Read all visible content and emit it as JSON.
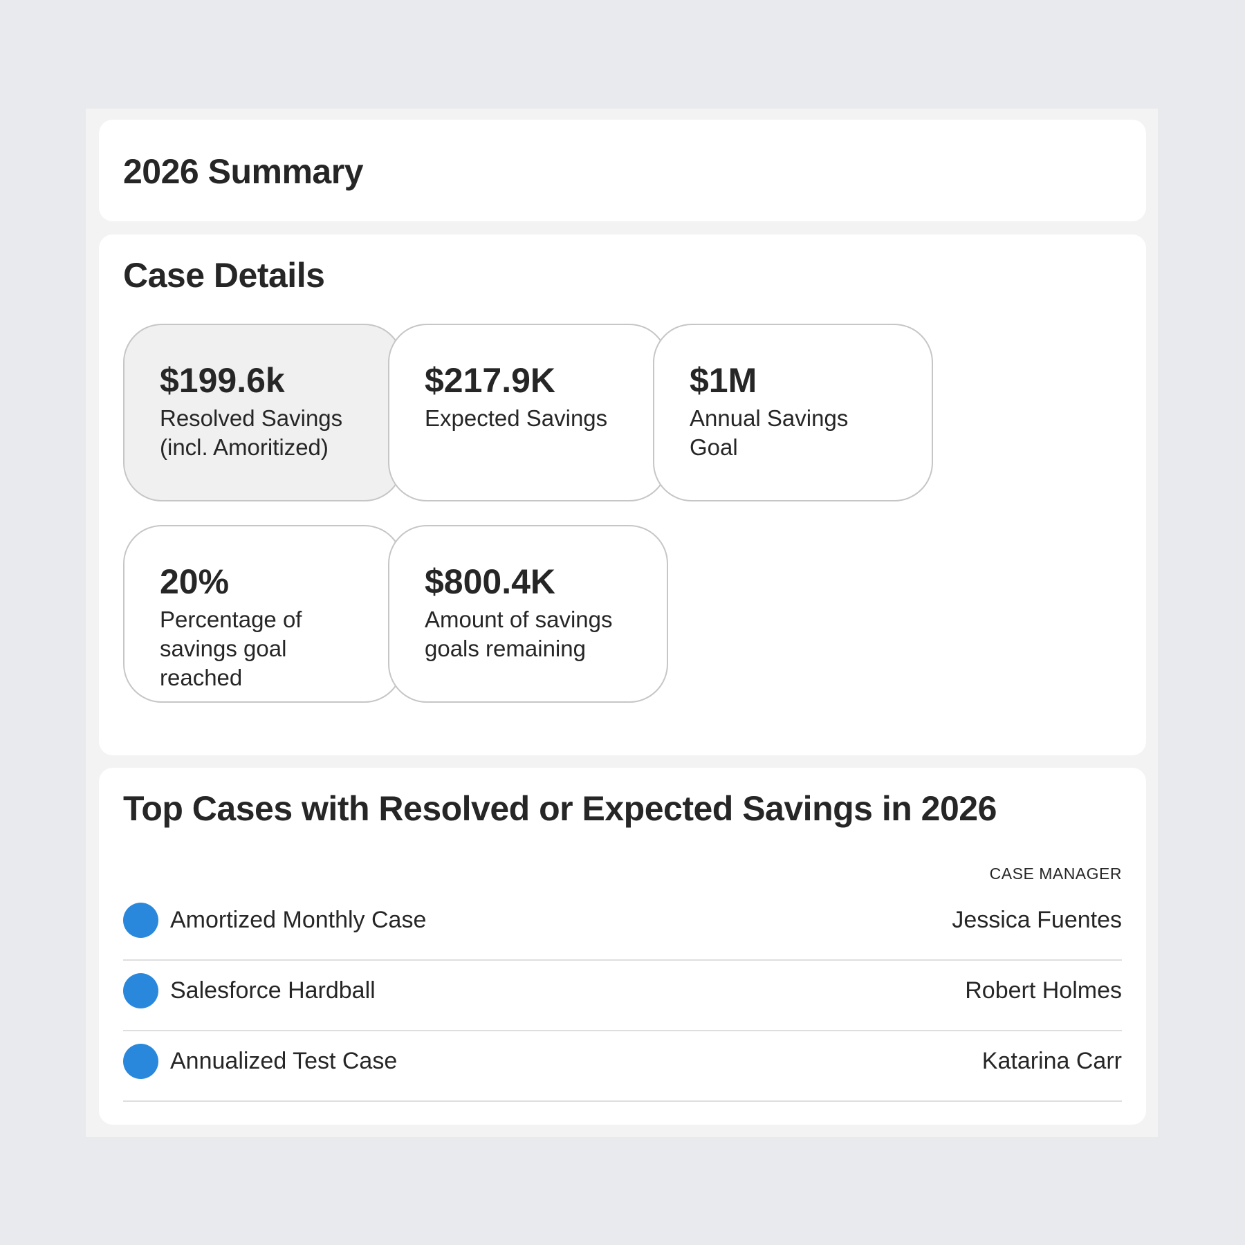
{
  "header": {
    "title": "2026 Summary"
  },
  "case_details": {
    "title": "Case Details",
    "tiles": [
      {
        "value": "$199.6k",
        "label": "Resolved Savings (incl. Amoritized)"
      },
      {
        "value": "$217.9K",
        "label": "Expected Savings"
      },
      {
        "value": "$1M",
        "label": "Annual Savings Goal"
      },
      {
        "value": "20%",
        "label": "Percentage of savings goal reached"
      },
      {
        "value": "$800.4K",
        "label": "Amount of savings goals remaining"
      }
    ]
  },
  "top_cases": {
    "title": "Top Cases with Resolved or Expected Savings in 2026",
    "column_header": "CASE MANAGER",
    "rows": [
      {
        "name": "Amortized Monthly Case",
        "manager": "Jessica Fuentes"
      },
      {
        "name": "Salesforce Hardball",
        "manager": "Robert Holmes"
      },
      {
        "name": "Annualized Test Case",
        "manager": "Katarina Carr"
      }
    ]
  }
}
